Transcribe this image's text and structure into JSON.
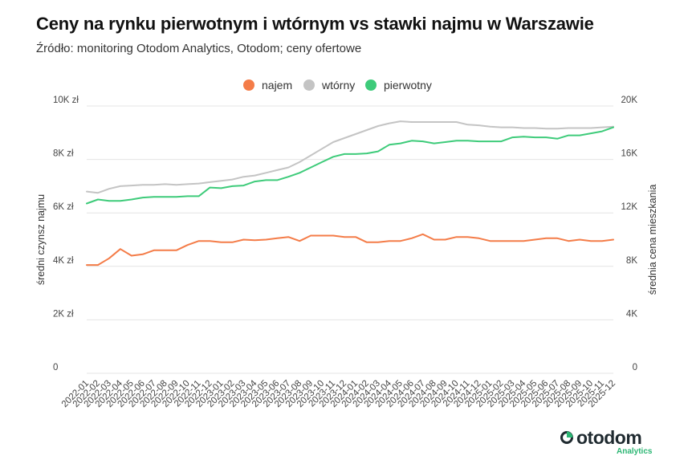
{
  "title": "Ceny na rynku pierwotnym i wtórnym vs stawki najmu w Warszawie",
  "subtitle": "Źródło: monitoring Otodom Analytics, Otodom; ceny ofertowe",
  "legend": [
    {
      "label": "najem",
      "color": "#f47c48"
    },
    {
      "label": "wtórny",
      "color": "#c4c4c4"
    },
    {
      "label": "pierwotny",
      "color": "#3ecb7a"
    }
  ],
  "logo": {
    "name": "otodom",
    "sub": "Analytics"
  },
  "chart_data": {
    "type": "line",
    "x": [
      "2022-01",
      "2022-02",
      "2022-03",
      "2022-04",
      "2022-05",
      "2022-06",
      "2022-07",
      "2022-08",
      "2022-09",
      "2022-10",
      "2022-11",
      "2022-12",
      "2023-01",
      "2023-02",
      "2023-03",
      "2023-04",
      "2023-05",
      "2023-06",
      "2023-07",
      "2023-08",
      "2023-09",
      "2023-10",
      "2023-11",
      "2023-12",
      "2024-01",
      "2024-02",
      "2024-03",
      "2024-04",
      "2024-05",
      "2024-06",
      "2024-07",
      "2024-08",
      "2024-09",
      "2024-10",
      "2024-11",
      "2024-12",
      "2025-01",
      "2025-02",
      "2025-03",
      "2025-04",
      "2025-05",
      "2025-06",
      "2025-07",
      "2025-08",
      "2025-09",
      "2025-10",
      "2025-11",
      "2025-12"
    ],
    "left_axis": {
      "label": "średni czynsz najmu",
      "min": 0,
      "max": 10000,
      "ticks": [
        0,
        2000,
        4000,
        6000,
        8000,
        10000
      ],
      "tick_labels": [
        "0",
        "2K zł",
        "4K zł",
        "6K zł",
        "8K zł",
        "10K zł"
      ]
    },
    "right_axis": {
      "label": "średnia cena mieszkania",
      "min": 0,
      "max": 20000,
      "ticks": [
        0,
        4000,
        8000,
        12000,
        16000,
        20000
      ],
      "tick_labels": [
        "0",
        "4K",
        "8K",
        "12K",
        "16K",
        "20K"
      ]
    },
    "grid": true,
    "legend_position": "top-center",
    "series": [
      {
        "name": "najem",
        "axis": "left",
        "color": "#f47c48",
        "values": [
          4050,
          4050,
          4300,
          4650,
          4400,
          4450,
          4600,
          4600,
          4600,
          4800,
          4950,
          4950,
          4900,
          4900,
          5000,
          4980,
          5000,
          5050,
          5100,
          4950,
          5150,
          5150,
          5150,
          5100,
          5100,
          4900,
          4900,
          4950,
          4950,
          5050,
          5200,
          5000,
          5000,
          5100,
          5100,
          5050,
          4950,
          4950,
          4950,
          4950,
          5000,
          5050,
          5050,
          4950,
          5000,
          4950,
          4950,
          5000
        ]
      },
      {
        "name": "wtórny",
        "axis": "right",
        "color": "#c4c4c4",
        "values": [
          13600,
          13500,
          13800,
          14000,
          14050,
          14100,
          14100,
          14150,
          14100,
          14150,
          14200,
          14300,
          14400,
          14500,
          14700,
          14800,
          15000,
          15200,
          15400,
          15800,
          16300,
          16800,
          17300,
          17600,
          17900,
          18200,
          18500,
          18700,
          18850,
          18800,
          18800,
          18800,
          18800,
          18800,
          18600,
          18550,
          18450,
          18400,
          18400,
          18350,
          18350,
          18300,
          18300,
          18350,
          18350,
          18350,
          18400,
          18450
        ]
      },
      {
        "name": "pierwotny",
        "axis": "right",
        "color": "#3ecb7a",
        "values": [
          12700,
          13000,
          12900,
          12900,
          13000,
          13150,
          13200,
          13200,
          13200,
          13250,
          13250,
          13900,
          13850,
          14000,
          14050,
          14350,
          14450,
          14450,
          14700,
          15000,
          15400,
          15800,
          16200,
          16400,
          16400,
          16450,
          16600,
          17100,
          17200,
          17400,
          17350,
          17200,
          17300,
          17400,
          17400,
          17350,
          17350,
          17350,
          17650,
          17700,
          17650,
          17650,
          17550,
          17800,
          17800,
          17950,
          18100,
          18400
        ]
      }
    ]
  }
}
